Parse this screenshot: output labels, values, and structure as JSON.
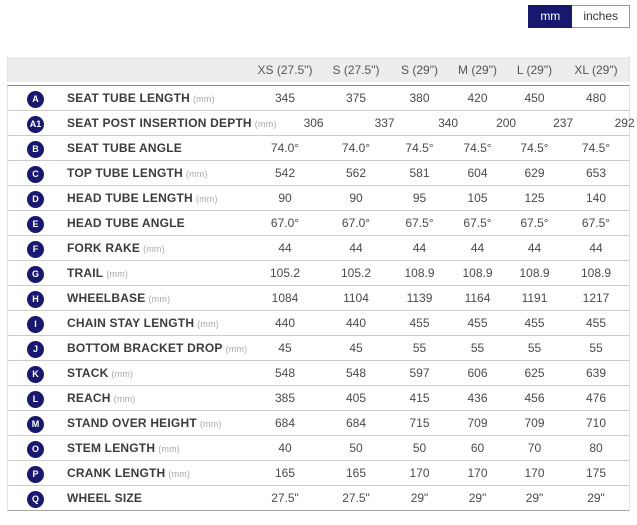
{
  "toggle": {
    "mm_label": "mm",
    "inches_label": "inches",
    "selected_unit": "mm"
  },
  "colors": {
    "accent_navy": "#18186e",
    "header_bg": "#ededed",
    "row_border": "#cccccc",
    "text_dark": "#3c3c3c",
    "text_value": "#4a4a4a"
  },
  "table": {
    "columns": [
      "XS (27.5\")",
      "S (27.5\")",
      "S (29\")",
      "M (29\")",
      "L (29\")",
      "XL (29\")"
    ],
    "rows": [
      {
        "badge": "A",
        "label": "SEAT TUBE LENGTH",
        "unit": "(mm)",
        "values": [
          "345",
          "375",
          "380",
          "420",
          "450",
          "480"
        ]
      },
      {
        "badge": "A1",
        "label": "SEAT POST INSERTION DEPTH",
        "unit": "(mm)",
        "values": [
          "306",
          "337",
          "340",
          "200",
          "237",
          "292"
        ]
      },
      {
        "badge": "B",
        "label": "SEAT TUBE ANGLE",
        "unit": "",
        "values": [
          "74.0°",
          "74.0°",
          "74.5°",
          "74.5°",
          "74.5°",
          "74.5°"
        ]
      },
      {
        "badge": "C",
        "label": "TOP TUBE LENGTH",
        "unit": "(mm)",
        "values": [
          "542",
          "562",
          "581",
          "604",
          "629",
          "653"
        ]
      },
      {
        "badge": "D",
        "label": "HEAD TUBE LENGTH",
        "unit": "(mm)",
        "values": [
          "90",
          "90",
          "95",
          "105",
          "125",
          "140"
        ]
      },
      {
        "badge": "E",
        "label": "HEAD TUBE ANGLE",
        "unit": "",
        "values": [
          "67.0°",
          "67.0°",
          "67.5°",
          "67.5°",
          "67.5°",
          "67.5°"
        ]
      },
      {
        "badge": "F",
        "label": "FORK RAKE",
        "unit": "(mm)",
        "values": [
          "44",
          "44",
          "44",
          "44",
          "44",
          "44"
        ]
      },
      {
        "badge": "G",
        "label": "TRAIL",
        "unit": "(mm)",
        "values": [
          "105.2",
          "105.2",
          "108.9",
          "108.9",
          "108.9",
          "108.9"
        ]
      },
      {
        "badge": "H",
        "label": "WHEELBASE",
        "unit": "(mm)",
        "values": [
          "1084",
          "1104",
          "1139",
          "1164",
          "1191",
          "1217"
        ]
      },
      {
        "badge": "I",
        "label": "CHAIN STAY LENGTH",
        "unit": "(mm)",
        "values": [
          "440",
          "440",
          "455",
          "455",
          "455",
          "455"
        ]
      },
      {
        "badge": "J",
        "label": "BOTTOM BRACKET DROP",
        "unit": "(mm)",
        "values": [
          "45",
          "45",
          "55",
          "55",
          "55",
          "55"
        ]
      },
      {
        "badge": "K",
        "label": "STACK",
        "unit": "(mm)",
        "values": [
          "548",
          "548",
          "597",
          "606",
          "625",
          "639"
        ]
      },
      {
        "badge": "L",
        "label": "REACH",
        "unit": "(mm)",
        "values": [
          "385",
          "405",
          "415",
          "436",
          "456",
          "476"
        ]
      },
      {
        "badge": "M",
        "label": "STAND OVER HEIGHT",
        "unit": "(mm)",
        "values": [
          "684",
          "684",
          "715",
          "709",
          "709",
          "710"
        ]
      },
      {
        "badge": "O",
        "label": "STEM LENGTH",
        "unit": "(mm)",
        "values": [
          "40",
          "50",
          "50",
          "60",
          "70",
          "80"
        ]
      },
      {
        "badge": "P",
        "label": "CRANK LENGTH",
        "unit": "(mm)",
        "values": [
          "165",
          "165",
          "170",
          "170",
          "170",
          "175"
        ]
      },
      {
        "badge": "Q",
        "label": "WHEEL SIZE",
        "unit": "",
        "values": [
          "27.5\"",
          "27.5\"",
          "29\"",
          "29\"",
          "29\"",
          "29\""
        ]
      }
    ]
  }
}
